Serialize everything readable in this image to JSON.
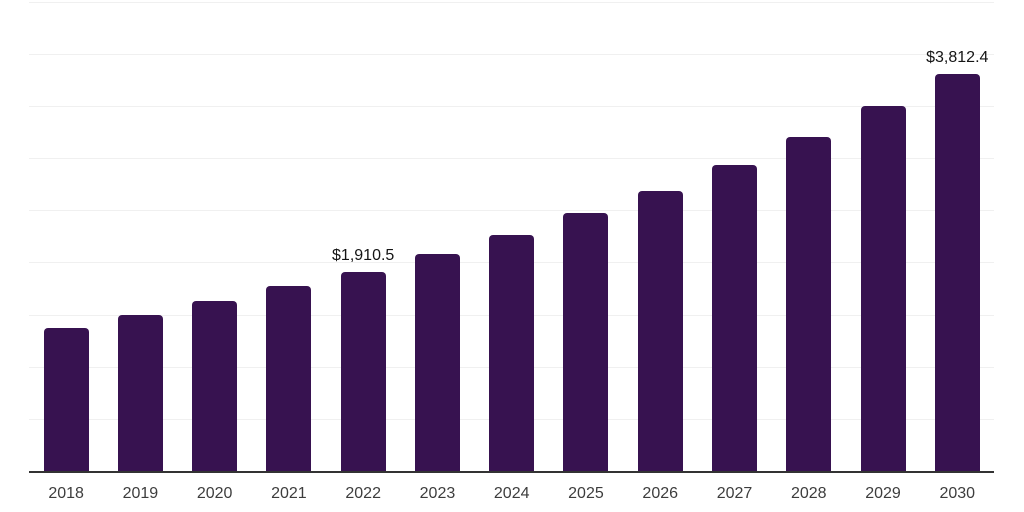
{
  "chart_data": {
    "type": "bar",
    "categories": [
      "2018",
      "2019",
      "2020",
      "2021",
      "2022",
      "2023",
      "2024",
      "2025",
      "2026",
      "2027",
      "2028",
      "2029",
      "2030"
    ],
    "values": [
      1375,
      1498,
      1632,
      1776,
      1910.5,
      2087,
      2271,
      2475,
      2692,
      2940,
      3202,
      3505,
      3812.4
    ],
    "labels": [
      "",
      "",
      "",
      "",
      "$1,910.5",
      "",
      "",
      "",
      "",
      "",
      "",
      "",
      "$3,812.4"
    ],
    "ylim": [
      0,
      4500
    ],
    "gridline_step": 500,
    "grid": "horizontal",
    "legend": "none",
    "colors": {
      "background": "#ffffff",
      "bar": "#371250",
      "grid": "#f0f0f0",
      "axis": "#333333",
      "tick_label": "#3d3d3d",
      "data_label": "#141414"
    }
  }
}
